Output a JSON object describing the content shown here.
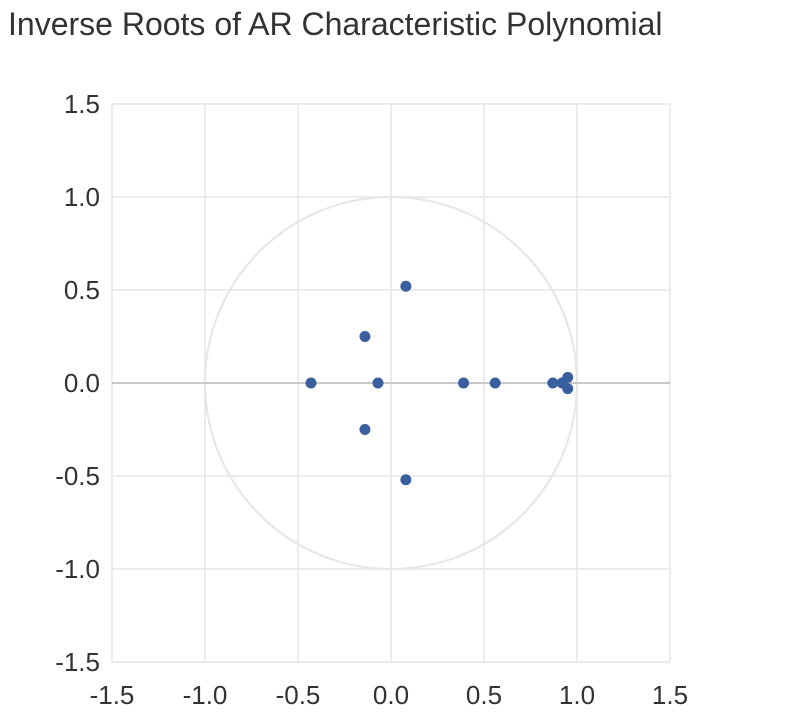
{
  "chart_data": {
    "type": "scatter",
    "title": "Inverse Roots of AR Characteristic Polynomial",
    "xlabel": "",
    "ylabel": "",
    "xlim": [
      -1.5,
      1.5
    ],
    "ylim": [
      -1.5,
      1.5
    ],
    "x_ticks": [
      "-1.5",
      "-1.0",
      "-0.5",
      "0.0",
      "0.5",
      "1.0",
      "1.5"
    ],
    "y_ticks": [
      "1.5",
      "1.0",
      "0.5",
      "0.0",
      "-0.5",
      "-1.0",
      "-1.5"
    ],
    "x_tick_values": [
      -1.5,
      -1.0,
      -0.5,
      0.0,
      0.5,
      1.0,
      1.5
    ],
    "y_tick_values": [
      1.5,
      1.0,
      0.5,
      0.0,
      -0.5,
      -1.0,
      -1.5
    ],
    "grid": true,
    "unit_circle": true,
    "point_color": "#3a5f9e",
    "grid_color": "#e6e6e6",
    "axis_color": "#c8c8c8",
    "series": [
      {
        "points": [
          {
            "x": 0.08,
            "y": 0.52
          },
          {
            "x": -0.14,
            "y": 0.25
          },
          {
            "x": -0.43,
            "y": 0.0
          },
          {
            "x": -0.07,
            "y": 0.0
          },
          {
            "x": -0.14,
            "y": -0.25
          },
          {
            "x": 0.08,
            "y": -0.52
          },
          {
            "x": 0.39,
            "y": 0.0
          },
          {
            "x": 0.56,
            "y": 0.0
          },
          {
            "x": 0.87,
            "y": 0.0
          },
          {
            "x": 0.92,
            "y": 0.0
          },
          {
            "x": 0.95,
            "y": 0.03
          },
          {
            "x": 0.95,
            "y": -0.03
          }
        ]
      }
    ]
  }
}
